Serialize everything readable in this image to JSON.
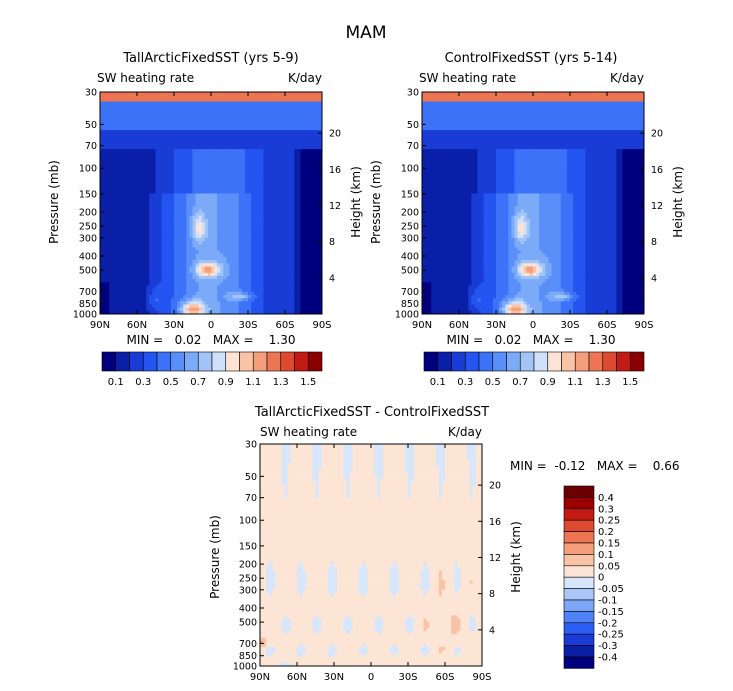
{
  "figure_title": "MAM",
  "chart_data": [
    {
      "type": "heatmap",
      "title": "TallArcticFixedSST (yrs 5-9)",
      "variable_label": "SW heating rate",
      "units_label": "K/day",
      "ylabel": "Pressure (mb)",
      "ylabel_right": "Height (km)",
      "x_ticks": [
        "90N",
        "60N",
        "30N",
        "0",
        "30S",
        "60S",
        "90S"
      ],
      "y_ticks": [
        30,
        50,
        70,
        100,
        150,
        200,
        250,
        300,
        400,
        500,
        700,
        850,
        1000
      ],
      "height_ticks": [
        20,
        16,
        12,
        8,
        4
      ],
      "stats": "MIN =   0.02   MAX =    1.30",
      "colorbar_ticks": [
        "0.1",
        "0.3",
        "0.5",
        "0.7",
        "0.9",
        "1.1",
        "1.3",
        "1.5"
      ],
      "colorbar_orientation": "horizontal",
      "features": {
        "stratospheric_max": 1.3,
        "midlevel_max_lat": 0,
        "midlevel_max_p": 500,
        "lowlevel_max_lat": 15,
        "lowlevel_max_p": 950,
        "polar_min_lat": -85
      }
    },
    {
      "type": "heatmap",
      "title": "ControlFixedSST (yrs 5-14)",
      "variable_label": "SW heating rate",
      "units_label": "K/day",
      "ylabel": "Pressure (mb)",
      "ylabel_right": "Height (km)",
      "x_ticks": [
        "90N",
        "60N",
        "30N",
        "0",
        "30S",
        "60S",
        "90S"
      ],
      "y_ticks": [
        30,
        50,
        70,
        100,
        150,
        200,
        250,
        300,
        400,
        500,
        700,
        850,
        1000
      ],
      "height_ticks": [
        20,
        16,
        12,
        8,
        4
      ],
      "stats": "MIN =   0.02   MAX =    1.30",
      "colorbar_ticks": [
        "0.1",
        "0.3",
        "0.5",
        "0.7",
        "0.9",
        "1.1",
        "1.3",
        "1.5"
      ],
      "colorbar_orientation": "horizontal",
      "features": {
        "stratospheric_max": 1.3,
        "midlevel_max_lat": 0,
        "midlevel_max_p": 500,
        "lowlevel_max_lat": 15,
        "lowlevel_max_p": 950,
        "polar_min_lat": -85
      }
    },
    {
      "type": "heatmap",
      "title": "TallArcticFixedSST - ControlFixedSST",
      "variable_label": "SW heating rate",
      "units_label": "K/day",
      "ylabel": "Pressure (mb)",
      "ylabel_right": "Height (km)",
      "x_ticks": [
        "90N",
        "60N",
        "30N",
        "0",
        "30S",
        "60S",
        "90S"
      ],
      "y_ticks": [
        30,
        50,
        70,
        100,
        150,
        200,
        250,
        300,
        400,
        500,
        700,
        850,
        1000
      ],
      "height_ticks": [
        20,
        16,
        12,
        8,
        4
      ],
      "stats": "MIN =  -0.12   MAX =    0.66",
      "colorbar_ticks": [
        "0.4",
        "0.3",
        "0.25",
        "0.2",
        "0.15",
        "0.1",
        "0.05",
        "0",
        "-0.05",
        "-0.1",
        "-0.15",
        "-0.2",
        "-0.25",
        "-0.3",
        "-0.4"
      ],
      "colorbar_orientation": "vertical",
      "features": {
        "min": -0.12,
        "max": 0.66,
        "max_lat": 88,
        "max_p": 690
      }
    }
  ],
  "colors": {
    "abs_levels": [
      "#00007f",
      "#0a1fa8",
      "#1a3cd6",
      "#2455f0",
      "#3c72f8",
      "#5a8ffa",
      "#7aaaf8",
      "#a3c4f6",
      "#cfe0fb",
      "#fde3d3",
      "#f9c3a6",
      "#f59e7b",
      "#ec7553",
      "#dd4a30",
      "#c21b14",
      "#8a0000"
    ],
    "diff_levels": [
      "#00007f",
      "#0b1fa3",
      "#1a3cd6",
      "#2c5df2",
      "#4f82f7",
      "#7ea6f7",
      "#a9c6f6",
      "#d7e6fb",
      "#fde5d6",
      "#f9c4a6",
      "#f59e7b",
      "#ec7553",
      "#dd4a30",
      "#c21b14",
      "#9b0000",
      "#6b0000"
    ]
  }
}
